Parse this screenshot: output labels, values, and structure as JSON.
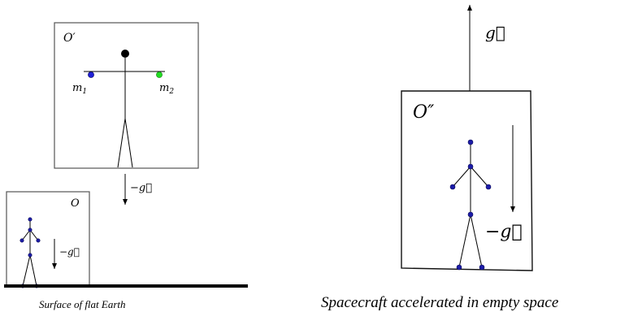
{
  "labels": {
    "frame_top": "O′",
    "frame_bottom": "O",
    "frame_spacecraft": "O″",
    "mass_1": "m",
    "mass_1_sub": "1",
    "mass_2": "m",
    "mass_2_sub": "2",
    "accel_top": "−g⃗",
    "accel_bottom": "−g⃗",
    "accel_spacecraft_up": "g⃗",
    "accel_spacecraft_down": "−g⃗"
  },
  "captions": {
    "left": "Surface of flat Earth",
    "right": "Spacecraft accelerated in empty space"
  },
  "colors": {
    "mass_1": "#1f1fd6",
    "mass_2": "#22dd22",
    "joint": "#1c1ca8",
    "ground": "#000000"
  }
}
